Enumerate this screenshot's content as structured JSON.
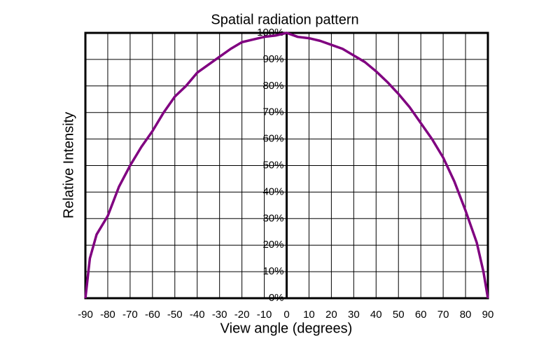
{
  "chart_data": {
    "type": "line",
    "title": "Spatial radiation pattern",
    "x_label": "View angle (degrees)",
    "y_label": "Relative Intensity",
    "x": [
      -90,
      -88,
      -85,
      -80,
      -75,
      -70,
      -65,
      -60,
      -55,
      -50,
      -45,
      -40,
      -35,
      -30,
      -25,
      -20,
      -15,
      -10,
      -5,
      0,
      5,
      10,
      15,
      20,
      25,
      30,
      35,
      40,
      45,
      50,
      55,
      60,
      65,
      70,
      75,
      80,
      85,
      88,
      90
    ],
    "series": [
      {
        "name": "Relative Intensity",
        "color": "#800080",
        "values": [
          0,
          15,
          24,
          31,
          42,
          50,
          57,
          63,
          70,
          76,
          80,
          85,
          88,
          91,
          94,
          96.5,
          97.5,
          98.5,
          99,
          100,
          98.5,
          98,
          97,
          95.5,
          94,
          91.5,
          89,
          85.5,
          81.5,
          77,
          72,
          66,
          60,
          53,
          44,
          33,
          21,
          10,
          0
        ]
      }
    ],
    "xlim": [
      -90,
      90
    ],
    "xticks": [
      -90,
      -80,
      -70,
      -60,
      -50,
      -40,
      -30,
      -20,
      -10,
      0,
      10,
      20,
      30,
      40,
      50,
      60,
      70,
      80,
      90
    ],
    "ylim": [
      0,
      100
    ],
    "yticks": [
      {
        "value": 0,
        "label": "0%"
      },
      {
        "value": 10,
        "label": "10%"
      },
      {
        "value": 20,
        "label": "20%"
      },
      {
        "value": 30,
        "label": "30%"
      },
      {
        "value": 40,
        "label": "40%"
      },
      {
        "value": 50,
        "label": "50%"
      },
      {
        "value": 60,
        "label": "60%"
      },
      {
        "value": 70,
        "label": "70%"
      },
      {
        "value": 80,
        "label": "80%"
      },
      {
        "value": 90,
        "label": "90%"
      },
      {
        "value": 100,
        "label": "100%"
      }
    ],
    "grid": true
  }
}
